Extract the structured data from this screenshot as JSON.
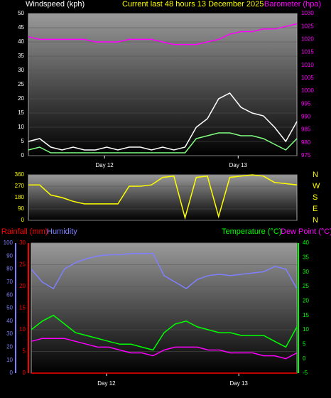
{
  "chart_data": [
    {
      "type": "line",
      "title": "Current last 48 hours 13 December 2025",
      "ylabel": "Windspeed (kph)",
      "y2label": "Barometer (hpa)",
      "x": [
        0,
        2,
        4,
        6,
        8,
        10,
        12,
        14,
        16,
        18,
        20,
        22,
        24,
        26,
        28,
        30,
        32,
        34,
        36,
        38,
        40,
        42,
        44,
        46,
        48
      ],
      "xlim": [
        0,
        48
      ],
      "xticks": [
        {
          "value": 13.6,
          "label": "Day 12"
        },
        {
          "value": 37.5,
          "label": "Day 13"
        }
      ],
      "ylim": [
        0,
        50
      ],
      "yticks": [
        0,
        5,
        10,
        15,
        20,
        25,
        30,
        35,
        40,
        45,
        50
      ],
      "y2lim": [
        975,
        1030
      ],
      "y2ticks": [
        975,
        980,
        985,
        990,
        995,
        1000,
        1005,
        1010,
        1015,
        1020,
        1025,
        1030
      ],
      "series": [
        {
          "color": "#ffffff",
          "axis": "y",
          "values": [
            5,
            6,
            3,
            2,
            3,
            2,
            2,
            3,
            2,
            3,
            3,
            2,
            3,
            2,
            3,
            10,
            13,
            20,
            22,
            17,
            15,
            14,
            10,
            5,
            12
          ]
        },
        {
          "color": "#80ff80",
          "axis": "y",
          "values": [
            2,
            3,
            1,
            1,
            1,
            1,
            1,
            1,
            1,
            1,
            1,
            1,
            1,
            1,
            1,
            6,
            7,
            8,
            8,
            7,
            7,
            6,
            4,
            2,
            6
          ]
        },
        {
          "color": "#ff00ff",
          "axis": "y2",
          "values": [
            1021,
            1020,
            1020,
            1020,
            1020,
            1020,
            1019,
            1019,
            1019,
            1020,
            1020,
            1020,
            1019,
            1018,
            1018,
            1018,
            1019,
            1020,
            1022,
            1023,
            1023,
            1024,
            1024,
            1025,
            1026
          ]
        }
      ]
    },
    {
      "type": "line",
      "x": [
        0,
        2,
        4,
        6,
        8,
        10,
        12,
        14,
        16,
        18,
        20,
        22,
        24,
        26,
        28,
        30,
        32,
        34,
        36,
        38,
        40,
        42,
        44,
        46,
        48
      ],
      "xlim": [
        0,
        48
      ],
      "ylim": [
        0,
        360
      ],
      "yticks": [
        0,
        90,
        180,
        270,
        360
      ],
      "y2lim": [
        0,
        360
      ],
      "y2ticks": [
        {
          "value": 0,
          "label": "N"
        },
        {
          "value": 90,
          "label": "E"
        },
        {
          "value": 180,
          "label": "S"
        },
        {
          "value": 270,
          "label": "W"
        },
        {
          "value": 360,
          "label": "N"
        }
      ],
      "series": [
        {
          "color": "#ffff00",
          "axis": "y",
          "values": [
            280,
            280,
            200,
            180,
            150,
            130,
            130,
            130,
            130,
            270,
            270,
            280,
            340,
            350,
            20,
            340,
            350,
            30,
            340,
            350,
            360,
            350,
            300,
            290,
            280
          ]
        }
      ]
    },
    {
      "type": "line",
      "ylabel": "Rainfall (mm)",
      "y3label": "Humidity",
      "y2label": "Temperature (°C)",
      "y4label": "Dew Point (°C)",
      "x": [
        0,
        2,
        4,
        6,
        8,
        10,
        12,
        14,
        16,
        18,
        20,
        22,
        24,
        26,
        28,
        30,
        32,
        34,
        36,
        38,
        40,
        42,
        44,
        46,
        48
      ],
      "xlim": [
        0,
        48
      ],
      "xticks": [
        {
          "value": 13.6,
          "label": "Day 12"
        },
        {
          "value": 37.5,
          "label": "Day 13"
        }
      ],
      "ylim": [
        0,
        30
      ],
      "yticks": [
        0,
        5,
        10,
        15,
        20,
        25,
        30
      ],
      "y3lim": [
        0,
        100
      ],
      "y3ticks": [
        0,
        10,
        20,
        30,
        40,
        50,
        60,
        70,
        80,
        90,
        100
      ],
      "y2lim": [
        -5,
        40
      ],
      "y2ticks": [
        -5,
        0,
        5,
        10,
        15,
        20,
        25,
        30,
        35,
        40
      ],
      "series": [
        {
          "color": "#ff0000",
          "axis": "y",
          "values": [
            0,
            0,
            0,
            0,
            0,
            0,
            0,
            0,
            0,
            0,
            0,
            0,
            0,
            0,
            0,
            0,
            0,
            0,
            0,
            0,
            0,
            0,
            0,
            0,
            0
          ]
        },
        {
          "color": "#8080ff",
          "axis": "y3",
          "values": [
            80,
            70,
            65,
            80,
            85,
            88,
            90,
            91,
            91,
            92,
            92,
            92,
            75,
            70,
            65,
            72,
            75,
            76,
            75,
            76,
            77,
            78,
            82,
            80,
            65
          ]
        },
        {
          "color": "#00ff00",
          "axis": "y2",
          "values": [
            10,
            13,
            15,
            12,
            9,
            8,
            7,
            6,
            5,
            5,
            4,
            3,
            9,
            12,
            13,
            11,
            10,
            9,
            9,
            8,
            8,
            8,
            6,
            4,
            11
          ]
        },
        {
          "color": "#ff00ff",
          "axis": "y2",
          "values": [
            6,
            7,
            7,
            7,
            6,
            5,
            4,
            4,
            3,
            2,
            2,
            1,
            3,
            4,
            4,
            4,
            3,
            3,
            2,
            2,
            2,
            1,
            1,
            0,
            2
          ]
        }
      ]
    }
  ]
}
